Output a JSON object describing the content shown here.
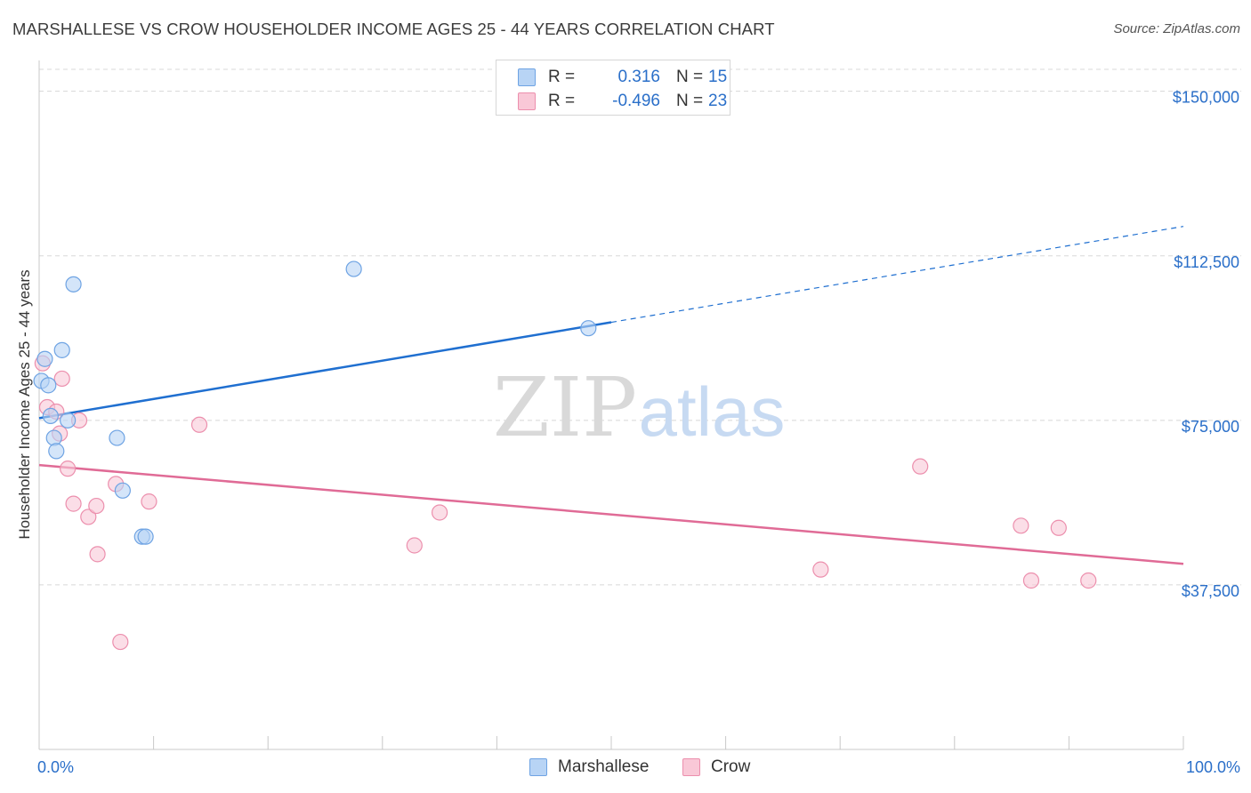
{
  "header": {
    "title": "MARSHALLESE VS CROW HOUSEHOLDER INCOME AGES 25 - 44 YEARS CORRELATION CHART",
    "source": "Source: ZipAtlas.com"
  },
  "watermark": {
    "zip": "ZIP",
    "atlas": "atlas"
  },
  "legend": {
    "r_label": "R =",
    "n_label": "N =",
    "items": [
      {
        "name": "Marshallese",
        "r": "0.316",
        "n": "15",
        "fill": "#b8d4f5",
        "stroke": "#6ea3e3"
      },
      {
        "name": "Crow",
        "r": "-0.496",
        "n": "23",
        "fill": "#f9c8d7",
        "stroke": "#ec8fad"
      }
    ]
  },
  "colors": {
    "accent_text": "#2a6fc9",
    "marshallese_line": "#1f6fd0",
    "crow_line": "#e06b96",
    "grid": "#d8d8d8"
  },
  "chart_data": {
    "type": "scatter",
    "title": "MARSHALLESE VS CROW HOUSEHOLDER INCOME AGES 25 - 44 YEARS CORRELATION CHART",
    "xlabel": "",
    "ylabel": "Householder Income Ages 25 - 44 years",
    "xlim": [
      0,
      100
    ],
    "ylim": [
      0,
      155000
    ],
    "x_tick_labels": [
      "0.0%",
      "100.0%"
    ],
    "y_ticks": [
      37500,
      75000,
      112500,
      150000
    ],
    "y_tick_labels": [
      "$37,500",
      "$75,000",
      "$112,500",
      "$150,000"
    ],
    "grid": true,
    "legend_position": "bottom-center",
    "series": [
      {
        "name": "Marshallese",
        "points": [
          {
            "x": 0.2,
            "y": 84000
          },
          {
            "x": 0.5,
            "y": 89000
          },
          {
            "x": 0.8,
            "y": 83000
          },
          {
            "x": 1.0,
            "y": 76000
          },
          {
            "x": 1.3,
            "y": 71000
          },
          {
            "x": 1.5,
            "y": 68000
          },
          {
            "x": 2.0,
            "y": 91000
          },
          {
            "x": 2.5,
            "y": 75000
          },
          {
            "x": 3.0,
            "y": 106000
          },
          {
            "x": 6.8,
            "y": 71000
          },
          {
            "x": 7.3,
            "y": 59000
          },
          {
            "x": 9.0,
            "y": 48500
          },
          {
            "x": 9.3,
            "y": 48500
          },
          {
            "x": 27.5,
            "y": 109500
          },
          {
            "x": 48.0,
            "y": 96000
          }
        ],
        "trend": {
          "x": [
            0,
            50,
            100
          ],
          "y": [
            75500,
            97300,
            119200
          ],
          "solid_until_x": 50
        }
      },
      {
        "name": "Crow",
        "points": [
          {
            "x": 0.3,
            "y": 88000
          },
          {
            "x": 0.7,
            "y": 78000
          },
          {
            "x": 1.5,
            "y": 77000
          },
          {
            "x": 1.8,
            "y": 72000
          },
          {
            "x": 2.0,
            "y": 84500
          },
          {
            "x": 2.5,
            "y": 64000
          },
          {
            "x": 3.0,
            "y": 56000
          },
          {
            "x": 3.5,
            "y": 75000
          },
          {
            "x": 4.3,
            "y": 53000
          },
          {
            "x": 5.0,
            "y": 55500
          },
          {
            "x": 5.1,
            "y": 44500
          },
          {
            "x": 6.7,
            "y": 60500
          },
          {
            "x": 7.1,
            "y": 24500
          },
          {
            "x": 9.6,
            "y": 56500
          },
          {
            "x": 14.0,
            "y": 74000
          },
          {
            "x": 32.8,
            "y": 46500
          },
          {
            "x": 35.0,
            "y": 54000
          },
          {
            "x": 68.3,
            "y": 41000
          },
          {
            "x": 77.0,
            "y": 64500
          },
          {
            "x": 85.8,
            "y": 51000
          },
          {
            "x": 86.7,
            "y": 38500
          },
          {
            "x": 89.1,
            "y": 50500
          },
          {
            "x": 91.7,
            "y": 38500
          }
        ],
        "trend": {
          "x": [
            0,
            100
          ],
          "y": [
            64800,
            42300
          ]
        }
      }
    ]
  }
}
